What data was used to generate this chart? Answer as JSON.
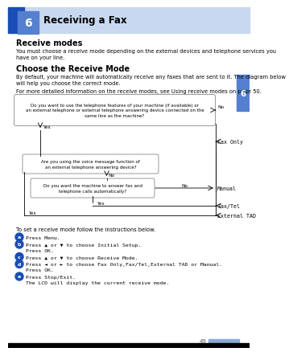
{
  "page_num": "49",
  "chapter_num": "6",
  "chapter_title": "Receiving a Fax",
  "section1_title": "Receive modes",
  "section1_body": "You must choose a receive mode depending on the external devices and telephone services you\nhave on your line.",
  "section2_title": "Choose the Receive Mode",
  "section2_body1": "By default, your machine will automatically receive any faxes that are sent to it. The diagram below\nwill help you choose the correct mode.",
  "section2_body2": "For more detailed information on the receive modes, see Using receive modes on page 50.",
  "flowchart": {
    "box1_text": "Do you want to use the telephone features of your machine (if available) or\nan external telephone or external telephone answering device connected on the\nsame line as the machine?",
    "box2_text": "Are you using the voice message function of\nan external telephone answering device?",
    "box3_text": "Do you want the machine to answer fax and\ntelephone calls automatically?",
    "result1": "Fax Only",
    "result2": "Manual",
    "result3": "Fax/Tel",
    "result4": "External TAD"
  },
  "step_labels": [
    "a",
    "b",
    "c",
    "d",
    "e"
  ],
  "colors": {
    "header_blue_dark": "#1a4db5",
    "header_blue_light": "#c8d8f0",
    "chapter_box_blue": "#5580d0",
    "tab_blue": "#5580d0",
    "background": "#ffffff",
    "circle_blue": "#1a4db5",
    "page_bar": "#8aaad8",
    "box_border": "#888888"
  }
}
